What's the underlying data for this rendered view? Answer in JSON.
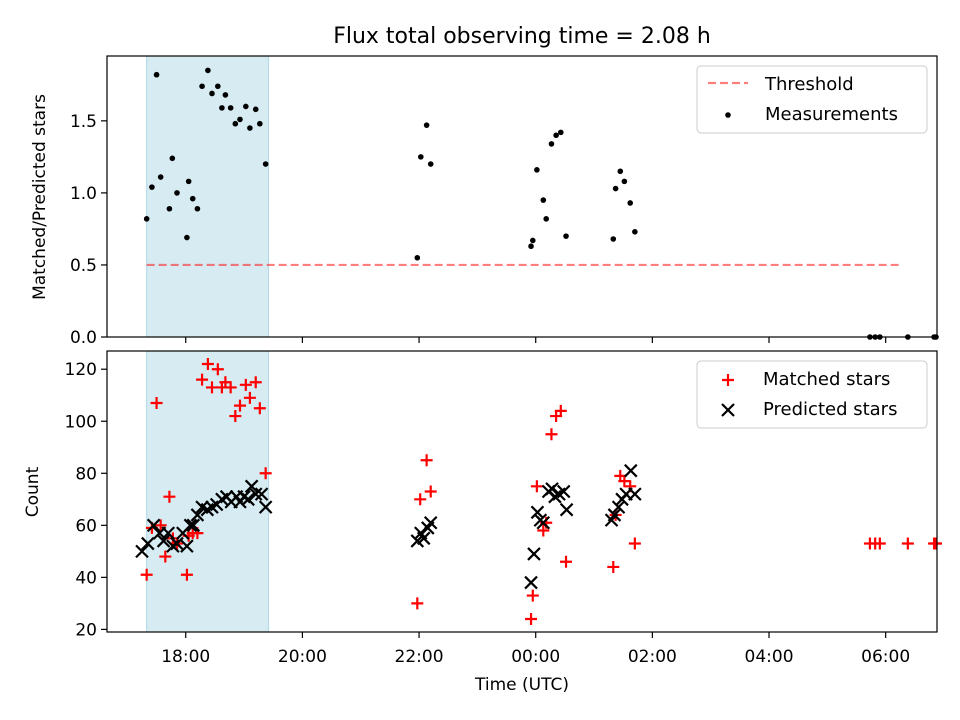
{
  "title": "Flux total observing time = 2.08 h",
  "chart_data": [
    {
      "type": "scatter",
      "ylabel": "Matched/Predicted stars",
      "ylim": [
        0,
        1.95
      ],
      "yticks": [
        0.0,
        0.5,
        1.0,
        1.5
      ],
      "ytick_labels": [
        "0.0",
        "0.5",
        "1.0",
        "1.5"
      ],
      "shaded_band": {
        "start_h": 17.33,
        "end_h": 19.42,
        "color": "#add8e6"
      },
      "threshold": {
        "name": "Threshold",
        "value": 0.5,
        "start_h": 17.33,
        "end_h": 30.27,
        "color": "#ff0000"
      },
      "series": [
        {
          "name": "Measurements",
          "color": "#000000",
          "marker": "dot",
          "x": [
            17.33,
            17.42,
            17.5,
            17.57,
            17.72,
            17.77,
            17.85,
            18.02,
            18.05,
            18.12,
            18.2,
            18.28,
            18.38,
            18.45,
            18.55,
            18.62,
            18.68,
            18.77,
            18.85,
            18.93,
            19.03,
            19.1,
            19.2,
            19.27,
            19.37,
            21.97,
            22.03,
            22.13,
            22.2,
            23.92,
            23.95,
            24.02,
            24.13,
            24.18,
            24.27,
            24.35,
            24.43,
            24.52,
            25.33,
            25.37,
            25.45,
            25.52,
            25.62,
            25.7,
            29.73,
            29.82,
            29.9,
            30.38,
            30.83,
            31.05
          ],
          "y": [
            0.82,
            1.04,
            1.82,
            1.11,
            0.89,
            1.24,
            1.0,
            0.69,
            1.08,
            0.96,
            0.89,
            1.74,
            1.85,
            1.69,
            1.74,
            1.59,
            1.68,
            1.59,
            1.48,
            1.51,
            1.6,
            1.45,
            1.58,
            1.48,
            1.2,
            0.55,
            1.25,
            1.47,
            1.2,
            0.63,
            0.67,
            1.16,
            0.95,
            0.82,
            1.34,
            1.4,
            1.42,
            0.7,
            0.68,
            1.03,
            1.15,
            1.08,
            0.93,
            0.73,
            0.0,
            0.0,
            0.0,
            0.0,
            0.0,
            0.0
          ]
        }
      ]
    },
    {
      "type": "scatter",
      "xlabel": "Time (UTC)",
      "ylabel": "Count",
      "ylim": [
        19,
        127
      ],
      "yticks": [
        20,
        40,
        60,
        80,
        100,
        120
      ],
      "ytick_labels": [
        "20",
        "40",
        "60",
        "80",
        "100",
        "120"
      ],
      "xlim_h": [
        16.65,
        30.88
      ],
      "xticks_h": [
        18,
        20,
        22,
        24,
        26,
        28,
        30
      ],
      "xtick_labels": [
        "18:00",
        "20:00",
        "22:00",
        "00:00",
        "02:00",
        "04:00",
        "06:00"
      ],
      "shaded_band": {
        "start_h": 17.33,
        "end_h": 19.42,
        "color": "#add8e6"
      },
      "series": [
        {
          "name": "Matched stars",
          "color": "#ff0000",
          "marker": "plus",
          "x": [
            17.33,
            17.42,
            17.5,
            17.57,
            17.65,
            17.72,
            17.78,
            17.85,
            18.02,
            18.05,
            18.12,
            18.2,
            18.28,
            18.38,
            18.45,
            18.55,
            18.62,
            18.68,
            18.77,
            18.85,
            18.93,
            19.03,
            19.1,
            19.2,
            19.27,
            19.37,
            21.97,
            22.02,
            22.13,
            22.2,
            23.92,
            23.95,
            24.02,
            24.13,
            24.18,
            24.27,
            24.35,
            24.43,
            24.52,
            25.33,
            25.37,
            25.45,
            25.52,
            25.62,
            25.7,
            29.73,
            29.82,
            29.9,
            30.38,
            30.83,
            31.05
          ],
          "y": [
            41,
            59,
            107,
            60,
            48,
            71,
            55,
            53,
            41,
            56,
            57,
            57,
            116,
            122,
            113,
            120,
            113,
            115,
            113,
            102,
            106,
            114,
            109,
            115,
            105,
            80,
            30,
            70,
            85,
            73,
            24,
            33,
            75,
            58,
            61,
            95,
            102,
            104,
            46,
            44,
            64,
            79,
            77,
            75,
            53,
            53,
            53,
            53,
            53,
            53,
            53
          ]
        },
        {
          "name": "Predicted stars",
          "color": "#000000",
          "marker": "x",
          "x": [
            17.25,
            17.35,
            17.45,
            17.55,
            17.62,
            17.7,
            17.78,
            17.85,
            17.95,
            18.02,
            18.08,
            18.13,
            18.2,
            18.28,
            18.37,
            18.45,
            18.53,
            18.62,
            18.7,
            18.78,
            18.87,
            18.93,
            19.0,
            19.07,
            19.13,
            19.2,
            19.3,
            19.37,
            21.97,
            22.03,
            22.08,
            22.15,
            22.2,
            23.92,
            23.97,
            24.03,
            24.08,
            24.13,
            24.22,
            24.28,
            24.33,
            24.4,
            24.48,
            24.53,
            25.3,
            25.35,
            25.42,
            25.48,
            25.55,
            25.63,
            25.7
          ],
          "y": [
            50,
            53,
            60,
            57,
            54,
            57,
            52,
            53,
            57,
            52,
            60,
            60,
            64,
            67,
            66,
            67,
            68,
            70,
            71,
            69,
            71,
            69,
            71,
            70,
            75,
            72,
            72,
            67,
            54,
            57,
            55,
            59,
            61,
            38,
            49,
            65,
            62,
            61,
            73,
            74,
            71,
            72,
            73,
            66,
            62,
            64,
            67,
            70,
            72,
            81,
            72
          ]
        }
      ]
    }
  ]
}
